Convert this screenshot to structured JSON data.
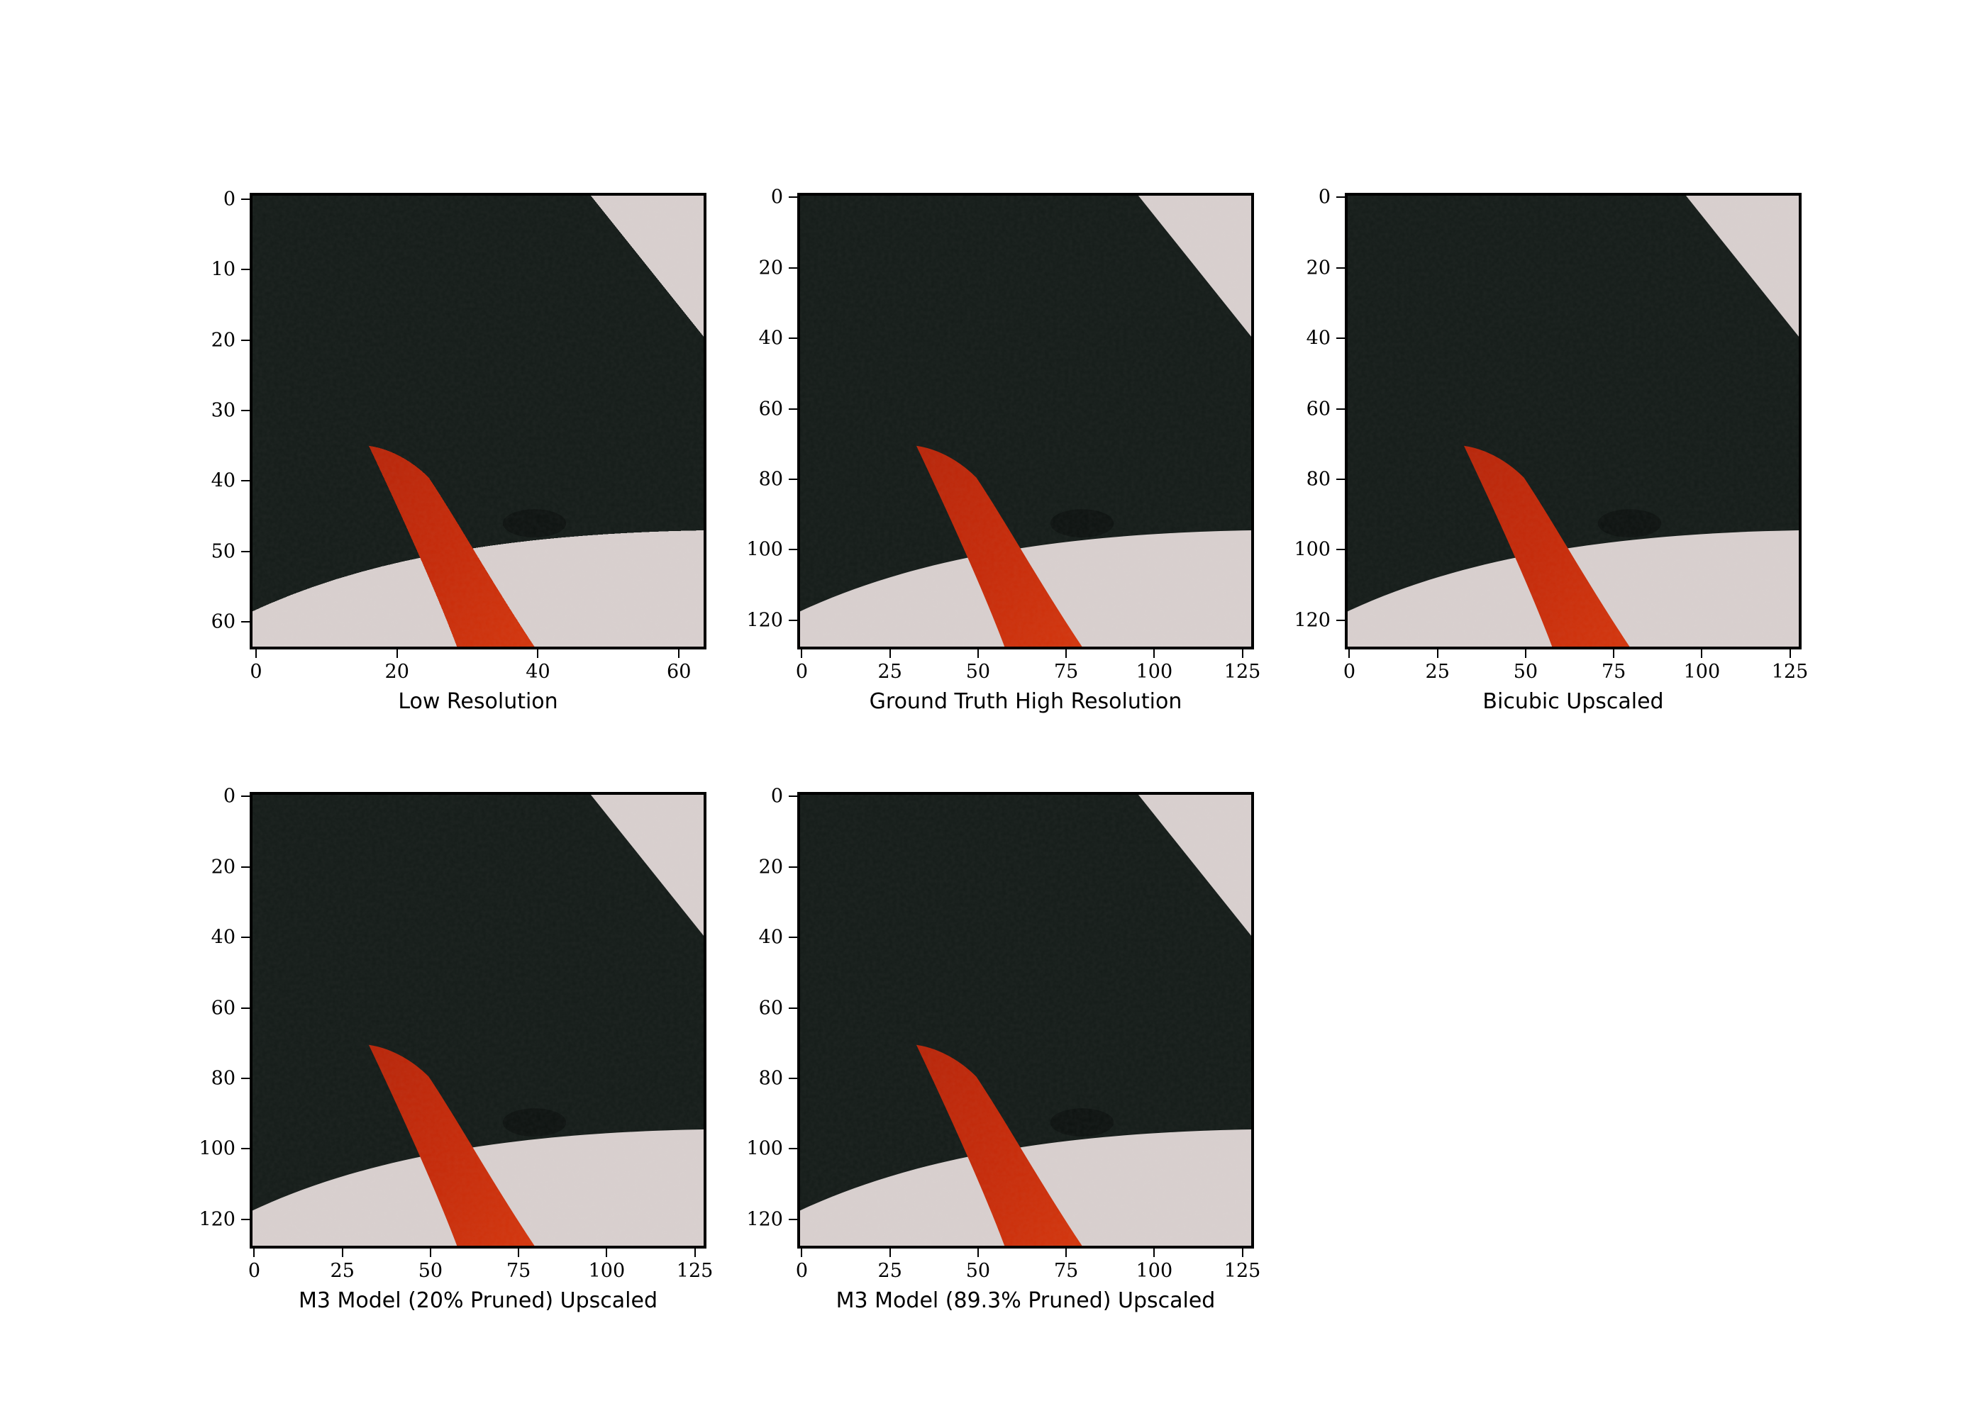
{
  "panels": [
    {
      "caption": "Low Resolution",
      "yticks": [
        "0",
        "10",
        "20",
        "30",
        "40",
        "50",
        "60"
      ],
      "xticks": [
        "0",
        "20",
        "40",
        "60"
      ],
      "size": 64,
      "pixelated": true
    },
    {
      "caption": "Ground Truth High Resolution",
      "yticks": [
        "0",
        "20",
        "40",
        "60",
        "80",
        "100",
        "120"
      ],
      "xticks": [
        "0",
        "25",
        "50",
        "75",
        "100",
        "125"
      ],
      "size": 128,
      "pixelated": false
    },
    {
      "caption": "Bicubic Upscaled",
      "yticks": [
        "0",
        "20",
        "40",
        "60",
        "80",
        "100",
        "120"
      ],
      "xticks": [
        "0",
        "25",
        "50",
        "75",
        "100",
        "125"
      ],
      "size": 128,
      "pixelated": false
    },
    {
      "caption": "M3 Model (20% Pruned) Upscaled",
      "yticks": [
        "0",
        "20",
        "40",
        "60",
        "80",
        "100",
        "120"
      ],
      "xticks": [
        "0",
        "25",
        "50",
        "75",
        "100",
        "125"
      ],
      "size": 128,
      "pixelated": false
    },
    {
      "caption": "M3 Model (89.3% Pruned) Upscaled",
      "yticks": [
        "0",
        "20",
        "40",
        "60",
        "80",
        "100",
        "120"
      ],
      "xticks": [
        "0",
        "25",
        "50",
        "75",
        "100",
        "125"
      ],
      "size": 128,
      "pixelated": false
    }
  ],
  "colors": {
    "dark_background": "#151c19",
    "light_surface": "#d9d0cf",
    "red_object": "#c62b0a"
  }
}
